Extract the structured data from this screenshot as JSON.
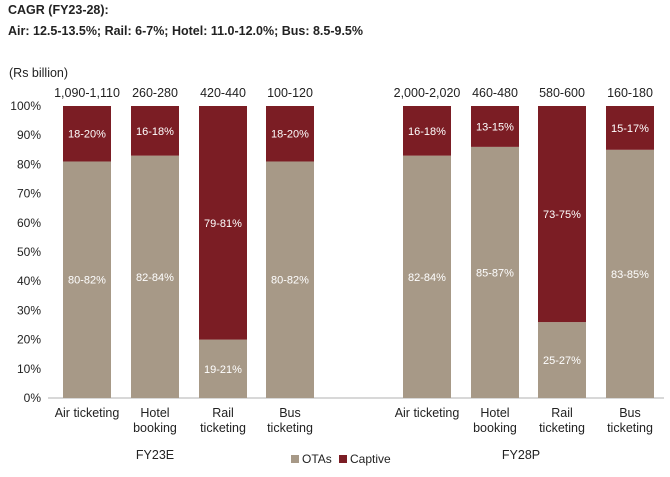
{
  "header": {
    "title": "CAGR (FY23-28):",
    "subtitle": "Air: 12.5-13.5%; Rail: 6-7%; Hotel: 11.0-12.0%; Bus: 8.5-9.5%"
  },
  "colors": {
    "otas": "#a79987",
    "captive": "#7b1d24",
    "axis": "#b0b0b0",
    "label_on_bar": "#ffffff"
  },
  "chart_data": {
    "type": "bar",
    "stacked": true,
    "unit_label": "(Rs billion)",
    "ylim": [
      0,
      100
    ],
    "yticks": [
      "0%",
      "10%",
      "20%",
      "30%",
      "40%",
      "50%",
      "60%",
      "70%",
      "80%",
      "90%",
      "100%"
    ],
    "legend": [
      "OTAs",
      "Captive"
    ],
    "legend_position": "bottom",
    "groups": [
      {
        "name": "FY23E",
        "bars": [
          {
            "category": [
              "Air ticketing"
            ],
            "total": "1,090-1,110",
            "otas_value": 81,
            "otas_label": "80-82%",
            "captive_label": "18-20%"
          },
          {
            "category": [
              "Hotel",
              "booking"
            ],
            "total": "260-280",
            "otas_value": 83,
            "otas_label": "82-84%",
            "captive_label": "16-18%"
          },
          {
            "category": [
              "Rail",
              "ticketing"
            ],
            "total": "420-440",
            "otas_value": 20,
            "otas_label": "19-21%",
            "captive_label": "79-81%"
          },
          {
            "category": [
              "Bus",
              "ticketing"
            ],
            "total": "100-120",
            "otas_value": 81,
            "otas_label": "80-82%",
            "captive_label": "18-20%"
          }
        ]
      },
      {
        "name": "FY28P",
        "bars": [
          {
            "category": [
              "Air ticketing"
            ],
            "total": "2,000-2,020",
            "otas_value": 83,
            "otas_label": "82-84%",
            "captive_label": "16-18%"
          },
          {
            "category": [
              "Hotel",
              "booking"
            ],
            "total": "460-480",
            "otas_value": 86,
            "otas_label": "85-87%",
            "captive_label": "13-15%"
          },
          {
            "category": [
              "Rail",
              "ticketing"
            ],
            "total": "580-600",
            "otas_value": 26,
            "otas_label": "25-27%",
            "captive_label": "73-75%"
          },
          {
            "category": [
              "Bus",
              "ticketing"
            ],
            "total": "160-180",
            "otas_value": 85,
            "otas_label": "83-85%",
            "captive_label": "15-17%"
          }
        ]
      }
    ]
  }
}
